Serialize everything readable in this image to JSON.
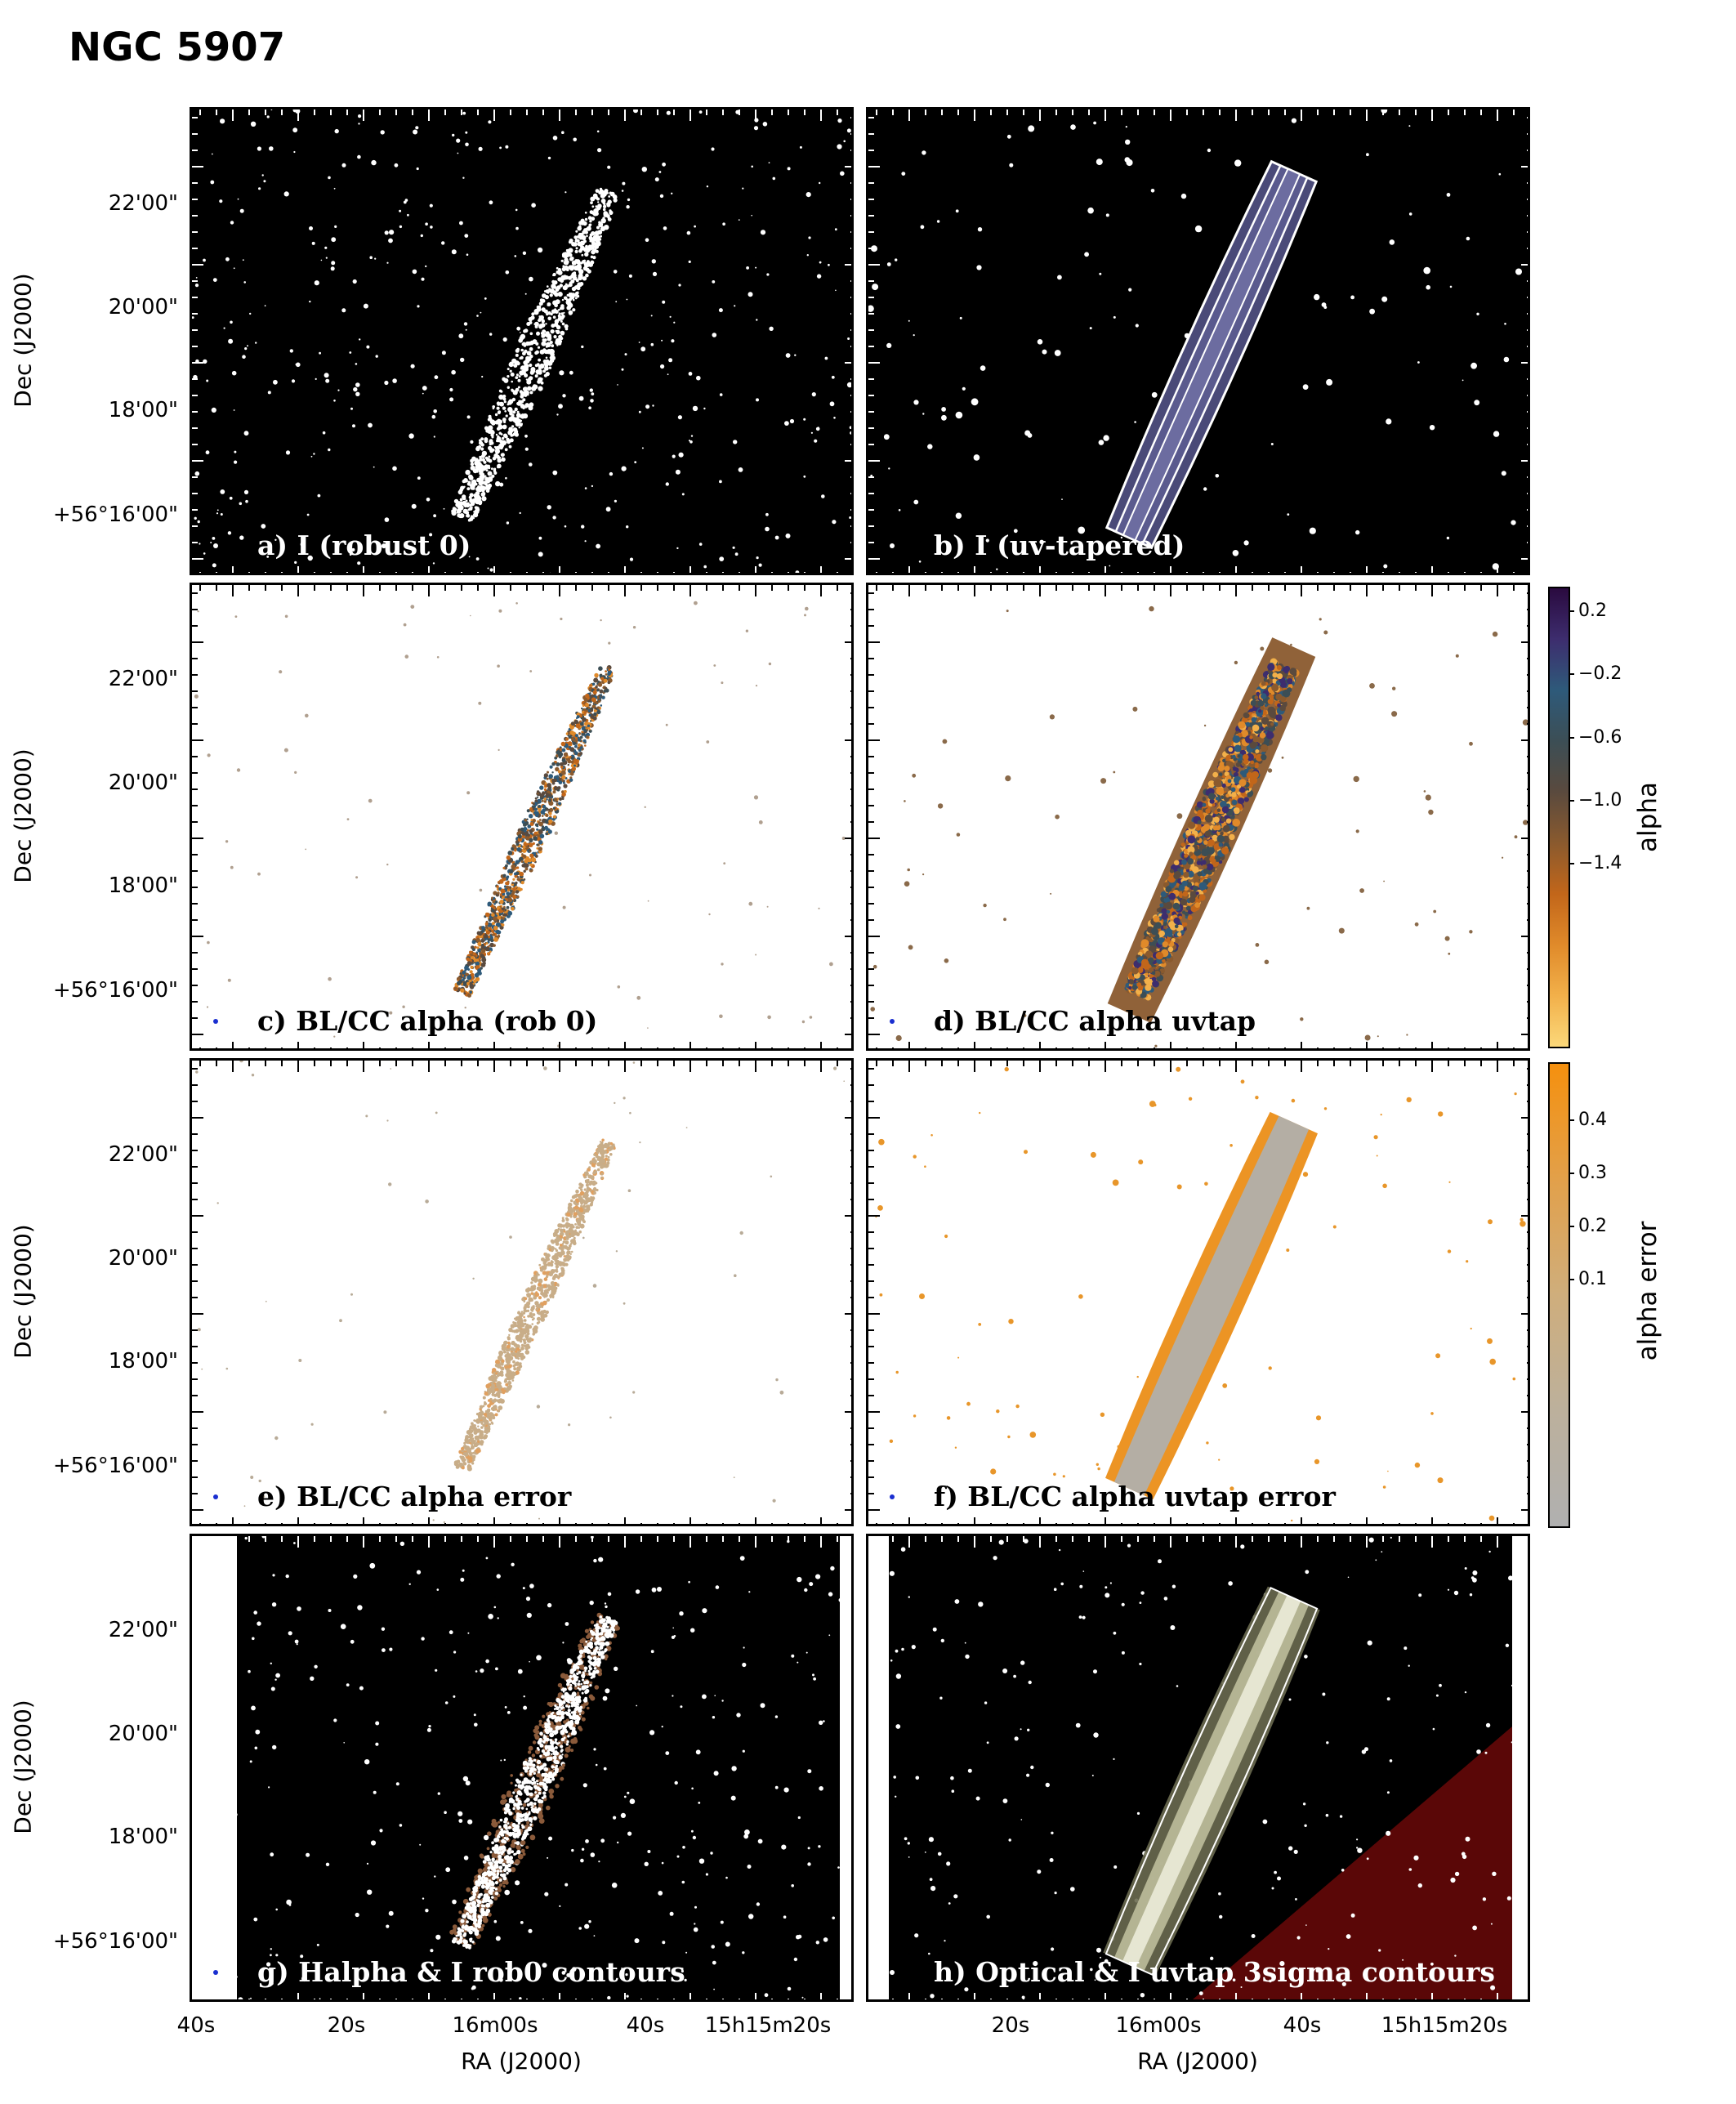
{
  "figure": {
    "title": "NGC 5907"
  },
  "panels": [
    {
      "id": "a",
      "label": "a) I (robust 0)",
      "bg": "#000000",
      "galaxy": "white-dots",
      "label_color": "light",
      "beam_color": "#ffffff"
    },
    {
      "id": "b",
      "label": "b) I (uv-tapered)",
      "bg": "#000000",
      "galaxy": "contour-lavender",
      "label_color": "light",
      "beam_color": "#ffffff"
    },
    {
      "id": "c",
      "label": "c) BL/CC alpha (rob 0)",
      "bg": "#ffffff",
      "galaxy": "alpha-thin",
      "label_color": "dark",
      "beam_color": "#1a2fd0"
    },
    {
      "id": "d",
      "label": "d) BL/CC alpha uvtap",
      "bg": "#ffffff",
      "galaxy": "alpha-wide",
      "label_color": "dark",
      "beam_color": "#1a2fd0"
    },
    {
      "id": "e",
      "label": "e)  BL/CC alpha error",
      "bg": "#ffffff",
      "galaxy": "err-thin",
      "label_color": "dark",
      "beam_color": "#1a2fd0"
    },
    {
      "id": "f",
      "label": "f) BL/CC alpha uvtap error",
      "bg": "#ffffff",
      "galaxy": "err-wide",
      "label_color": "dark",
      "beam_color": "#1a2fd0"
    },
    {
      "id": "g",
      "label": "g) Halpha & I rob0 contours",
      "bg": "#000000",
      "galaxy": "halpha",
      "label_color": "light",
      "beam_color": "#1a2fd0"
    },
    {
      "id": "h",
      "label": "h) Optical & I uvtap 3sigma contours",
      "bg": "#000000",
      "galaxy": "optical",
      "label_color": "light",
      "beam_color": "#ffffff"
    }
  ],
  "axes": {
    "ylabel": "Dec (J2000)",
    "xlabel": "RA (J2000)",
    "yticks": [
      "22'00\"",
      "20'00\"",
      "18'00\"",
      "+56°16'00\""
    ],
    "xticks": [
      "40s",
      "20s",
      "16m00s",
      "40s",
      "15h15m20s"
    ]
  },
  "colorbars": {
    "alpha": {
      "label": "alpha",
      "ticks": [
        "0.2",
        "−0.2",
        "−0.6",
        "−1.0",
        "−1.4"
      ],
      "colors": [
        "#2a0a3f",
        "#3d2d6e",
        "#2e5a7a",
        "#3c4e55",
        "#5a4a3e",
        "#8a5a2e",
        "#c2661a",
        "#e08a2a",
        "#f2b04a",
        "#fbd87a"
      ]
    },
    "alpha_error": {
      "label": "alpha error",
      "ticks": [
        "0.4",
        "0.3",
        "0.2",
        "0.1"
      ],
      "colors": [
        "#f5900e",
        "#e2a04a",
        "#cfae7c",
        "#bcb09c",
        "#b0b0b0"
      ]
    }
  }
}
